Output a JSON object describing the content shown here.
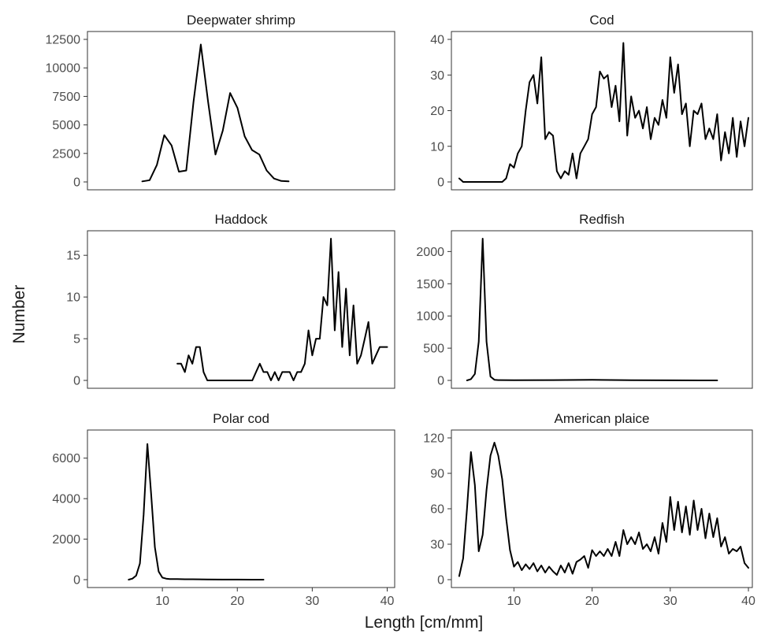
{
  "figure": {
    "xlabel": "Length [cm/mm]",
    "ylabel": "Number",
    "line_color": "#000000"
  },
  "chart_data": [
    {
      "type": "line",
      "title": "Deepwater shrimp",
      "xlim": [
        0,
        42
      ],
      "ylim": [
        0,
        12500
      ],
      "xticks": [],
      "yticks": [
        0,
        2500,
        5000,
        7500,
        10000,
        12500
      ],
      "x": [
        7.5,
        8.5,
        9.5,
        10.5,
        11.5,
        12.5,
        13.5,
        14.5,
        15.5,
        16.5,
        17.5,
        18.5,
        19.5,
        20.5,
        21.5,
        22.5,
        23.5,
        24.5,
        25.5,
        26.5,
        27.5
      ],
      "values": [
        50,
        150,
        1500,
        4100,
        3200,
        900,
        1000,
        7000,
        12050,
        7000,
        2400,
        4500,
        7800,
        6500,
        4000,
        2800,
        2400,
        1000,
        300,
        80,
        50
      ]
    },
    {
      "type": "line",
      "title": "Cod",
      "xlim": [
        2,
        40.5
      ],
      "ylim": [
        0,
        40
      ],
      "xticks": [],
      "yticks": [
        0,
        10,
        20,
        30,
        40
      ],
      "x": [
        3,
        3.5,
        4,
        4.5,
        5,
        5.5,
        6,
        6.5,
        7,
        7.5,
        8,
        8.5,
        9,
        9.5,
        10,
        10.5,
        11,
        11.5,
        12,
        12.5,
        13,
        13.5,
        14,
        14.5,
        15,
        15.5,
        16,
        16.5,
        17,
        17.5,
        18,
        18.5,
        19,
        19.5,
        20,
        20.5,
        21,
        21.5,
        22,
        22.5,
        23,
        23.5,
        24,
        24.5,
        25,
        25.5,
        26,
        26.5,
        27,
        27.5,
        28,
        28.5,
        29,
        29.5,
        30,
        30.5,
        31,
        31.5,
        32,
        32.5,
        33,
        33.5,
        34,
        34.5,
        35,
        35.5,
        36,
        36.5,
        37,
        37.5,
        38,
        38.5,
        39,
        39.5,
        40
      ],
      "values": [
        1,
        0,
        0,
        0,
        0,
        0,
        0,
        0,
        0,
        0,
        0,
        0,
        1,
        5,
        4,
        8,
        10,
        20,
        28,
        30,
        22,
        35,
        12,
        14,
        13,
        3,
        1,
        3,
        2,
        8,
        1,
        8,
        10,
        12,
        19,
        21,
        31,
        29,
        30,
        21,
        27,
        17,
        39,
        13,
        24,
        18,
        20,
        15,
        21,
        12,
        18,
        16,
        23,
        18,
        35,
        25,
        33,
        19,
        22,
        10,
        20,
        19,
        22,
        12,
        15,
        12,
        19,
        6,
        14,
        8,
        18,
        7,
        17,
        10,
        18
      ]
    },
    {
      "type": "line",
      "title": "Haddock",
      "xlim": [
        0,
        41
      ],
      "ylim": [
        0,
        17
      ],
      "xticks": [],
      "yticks": [
        0,
        5,
        10,
        15
      ],
      "x": [
        12,
        12.5,
        13,
        13.5,
        14,
        14.5,
        15,
        15.5,
        16,
        17,
        18,
        19,
        20,
        21,
        22,
        22.5,
        23,
        23.5,
        24,
        24.5,
        25,
        25.5,
        26,
        26.5,
        27,
        27.5,
        28,
        28.5,
        29,
        29.5,
        30,
        30.5,
        31,
        31.5,
        32,
        32.5,
        33,
        33.5,
        34,
        34.5,
        35,
        35.5,
        36,
        36.5,
        37,
        37.5,
        38,
        38.5,
        39,
        39.5,
        40
      ],
      "values": [
        2,
        2,
        1,
        3,
        2,
        4,
        4,
        1,
        0,
        0,
        0,
        0,
        0,
        0,
        0,
        1,
        2,
        1,
        1,
        0,
        1,
        0,
        1,
        1,
        1,
        0,
        1,
        1,
        2,
        6,
        3,
        5,
        5,
        10,
        9,
        17,
        6,
        13,
        4,
        11,
        3,
        9,
        2,
        3,
        5,
        7,
        2,
        3,
        4,
        4,
        4
      ]
    },
    {
      "type": "line",
      "title": "Redfish",
      "xlim": [
        2,
        40.5
      ],
      "ylim": [
        0,
        2200
      ],
      "xticks": [],
      "yticks": [
        0,
        500,
        1000,
        1500,
        2000
      ],
      "x": [
        4,
        4.5,
        5,
        5.5,
        6,
        6.5,
        7,
        7.5,
        8,
        10,
        15,
        20,
        25,
        30,
        36
      ],
      "values": [
        0,
        20,
        100,
        600,
        2200,
        600,
        60,
        10,
        5,
        2,
        5,
        10,
        3,
        1,
        0
      ]
    },
    {
      "type": "line",
      "title": "Polar cod",
      "xlim": [
        0,
        41
      ],
      "ylim": [
        0,
        7000
      ],
      "xticks": [
        10,
        20,
        30,
        40
      ],
      "yticks": [
        0,
        2000,
        4000,
        6000
      ],
      "x": [
        5.5,
        6,
        6.5,
        7,
        7.5,
        8,
        8.5,
        9,
        9.5,
        10,
        10.5,
        11,
        12,
        13,
        14,
        16,
        18,
        20,
        22,
        23.5
      ],
      "values": [
        0,
        50,
        200,
        800,
        3200,
        6700,
        4200,
        1600,
        400,
        100,
        50,
        30,
        30,
        20,
        20,
        10,
        5,
        5,
        0,
        0
      ]
    },
    {
      "type": "line",
      "title": "American plaice",
      "xlim": [
        2,
        40.5
      ],
      "ylim": [
        0,
        120
      ],
      "xticks": [
        10,
        20,
        30,
        40
      ],
      "yticks": [
        0,
        30,
        60,
        90,
        120
      ],
      "x": [
        3,
        3.5,
        4,
        4.5,
        5,
        5.5,
        6,
        6.5,
        7,
        7.5,
        8,
        8.5,
        9,
        9.5,
        10,
        10.5,
        11,
        11.5,
        12,
        12.5,
        13,
        13.5,
        14,
        14.5,
        15,
        15.5,
        16,
        16.5,
        17,
        17.5,
        18,
        18.5,
        19,
        19.5,
        20,
        20.5,
        21,
        21.5,
        22,
        22.5,
        23,
        23.5,
        24,
        24.5,
        25,
        25.5,
        26,
        26.5,
        27,
        27.5,
        28,
        28.5,
        29,
        29.5,
        30,
        30.5,
        31,
        31.5,
        32,
        32.5,
        33,
        33.5,
        34,
        34.5,
        35,
        35.5,
        36,
        36.5,
        37,
        37.5,
        38,
        38.5,
        39,
        39.5,
        40
      ],
      "values": [
        3,
        18,
        60,
        108,
        80,
        24,
        38,
        76,
        105,
        116,
        105,
        85,
        52,
        25,
        11,
        15,
        8,
        13,
        9,
        14,
        7,
        12,
        6,
        11,
        7,
        4,
        12,
        6,
        14,
        5,
        15,
        17,
        20,
        10,
        25,
        20,
        24,
        20,
        26,
        20,
        32,
        20,
        42,
        30,
        36,
        30,
        40,
        26,
        30,
        24,
        36,
        22,
        48,
        32,
        70,
        42,
        66,
        40,
        62,
        38,
        67,
        42,
        60,
        35,
        56,
        36,
        52,
        28,
        36,
        22,
        26,
        24,
        28,
        14,
        10
      ]
    }
  ]
}
